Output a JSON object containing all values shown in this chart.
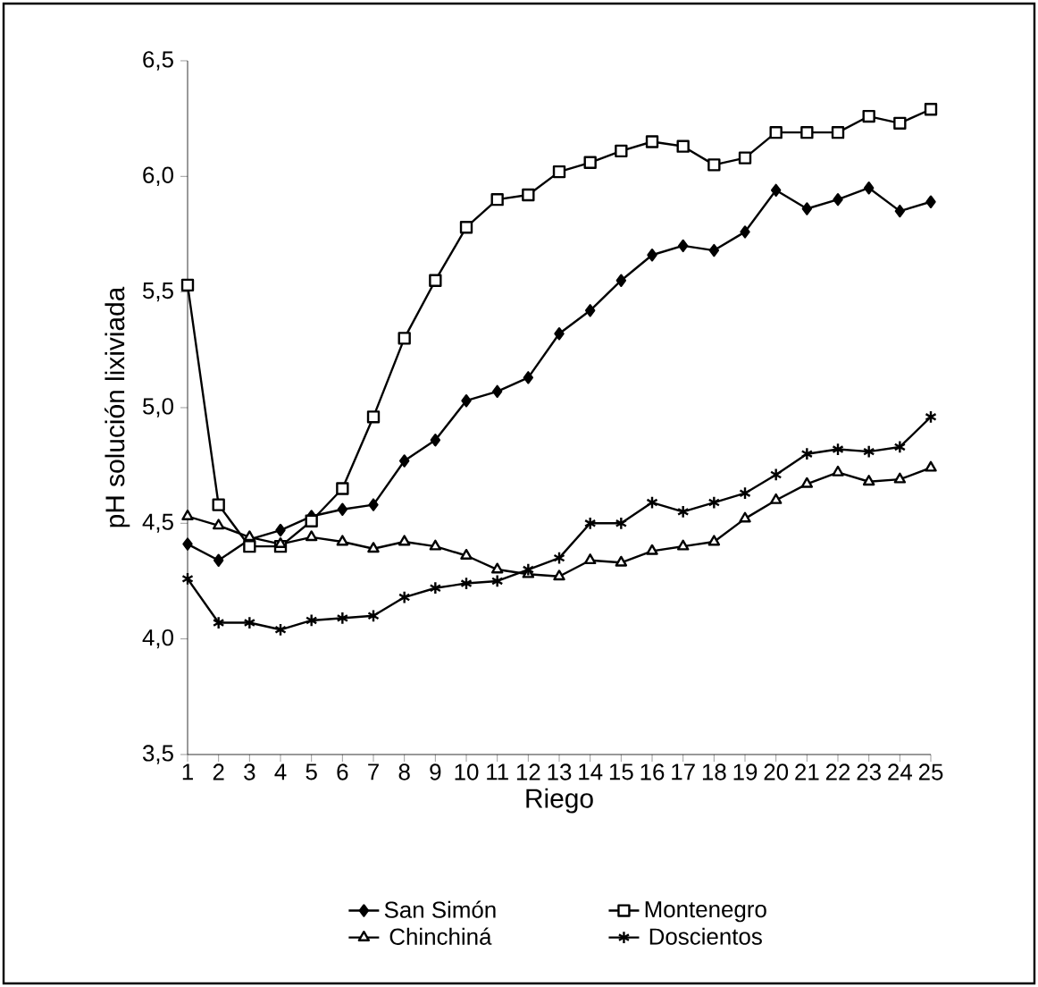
{
  "chart_data": {
    "type": "line",
    "xlabel": "Riego",
    "ylabel": "pH solución lixiviada",
    "categories": [
      "1",
      "2",
      "3",
      "4",
      "5",
      "6",
      "7",
      "8",
      "9",
      "10",
      "11",
      "12",
      "13",
      "14",
      "15",
      "16",
      "17",
      "18",
      "19",
      "20",
      "21",
      "22",
      "23",
      "24",
      "25"
    ],
    "series": [
      {
        "name": "San Simón",
        "color": "#000000",
        "marker": "diamond",
        "values": [
          4.41,
          4.34,
          4.43,
          4.47,
          4.53,
          4.56,
          4.58,
          4.77,
          4.86,
          5.03,
          5.07,
          5.13,
          5.32,
          5.42,
          5.55,
          5.66,
          5.7,
          5.68,
          5.76,
          5.94,
          5.86,
          5.9,
          5.95,
          5.85,
          5.89
        ]
      },
      {
        "name": "Montenegro",
        "color": "#000000",
        "marker": "square",
        "values": [
          5.53,
          4.58,
          4.4,
          4.4,
          4.51,
          4.65,
          4.96,
          5.3,
          5.55,
          5.78,
          5.9,
          5.92,
          6.02,
          6.06,
          6.11,
          6.15,
          6.13,
          6.05,
          6.08,
          6.19,
          6.19,
          6.19,
          6.26,
          6.23,
          6.29
        ]
      },
      {
        "name": "Chinchiná",
        "color": "#000000",
        "marker": "triangle",
        "values": [
          4.53,
          4.49,
          4.44,
          4.41,
          4.44,
          4.42,
          4.39,
          4.42,
          4.4,
          4.36,
          4.3,
          4.28,
          4.27,
          4.34,
          4.33,
          4.38,
          4.4,
          4.42,
          4.52,
          4.6,
          4.67,
          4.72,
          4.68,
          4.69,
          4.74
        ]
      },
      {
        "name": "Doscientos",
        "color": "#000000",
        "marker": "cross",
        "values": [
          4.26,
          4.07,
          4.07,
          4.04,
          4.08,
          4.09,
          4.1,
          4.18,
          4.22,
          4.24,
          4.25,
          4.3,
          4.35,
          4.5,
          4.5,
          4.59,
          4.55,
          4.59,
          4.63,
          4.71,
          4.8,
          4.82,
          4.81,
          4.83,
          4.96
        ]
      }
    ],
    "ylim": [
      3.5,
      6.5
    ],
    "yticks": [
      {
        "value": 3.5,
        "label": "3,5"
      },
      {
        "value": 4.0,
        "label": "4,0"
      },
      {
        "value": 4.5,
        "label": "4,5"
      },
      {
        "value": 5.0,
        "label": "5,0"
      },
      {
        "value": 5.5,
        "label": "5,5"
      },
      {
        "value": 6.0,
        "label": "6,0"
      },
      {
        "value": 6.5,
        "label": "6,5"
      }
    ],
    "grid": false,
    "legend": "bottom",
    "line_style": "solid"
  }
}
